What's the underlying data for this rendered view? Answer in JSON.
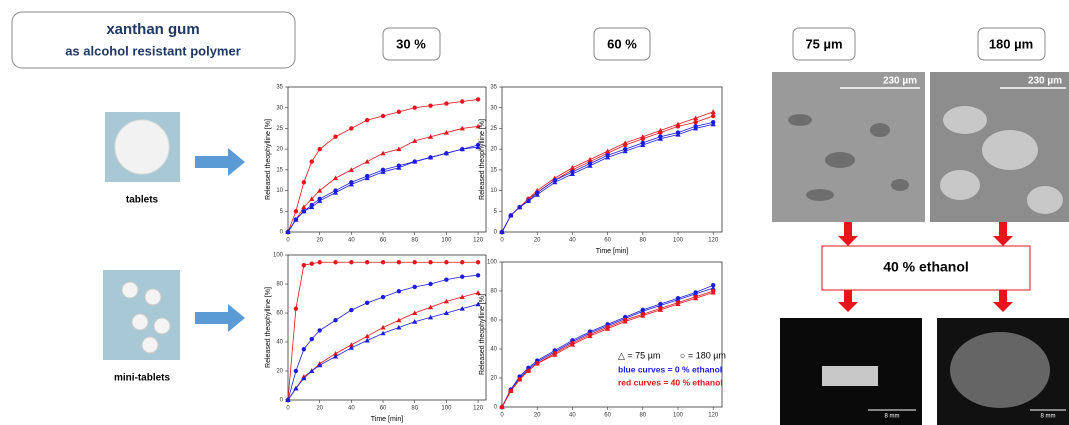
{
  "header": {
    "title": "xanthan gum",
    "subtitle": "as alcohol resistant polymer"
  },
  "columns": [
    "30 %",
    "60 %",
    "75 µm",
    "180 µm"
  ],
  "samples": [
    "tablets",
    "mini-tablets"
  ],
  "treatment": "40 % ethanol",
  "scale_bars": [
    "230 µm",
    "230 µm",
    "8 mm",
    "8 mm"
  ],
  "chart_data": [
    {
      "type": "line",
      "ylabel": "Released theophylline [%]",
      "x": [
        0,
        5,
        10,
        15,
        20,
        30,
        40,
        50,
        60,
        70,
        80,
        90,
        100,
        110,
        120
      ],
      "xlim": [
        0,
        125
      ],
      "xticks": [
        0,
        20,
        40,
        60,
        80,
        100,
        120
      ],
      "ylim": [
        0,
        35
      ],
      "yticks": [
        0,
        5,
        10,
        15,
        20,
        25,
        30,
        35
      ],
      "series": [
        {
          "color": "#e8141c",
          "marker": "circle",
          "values": [
            0,
            5,
            12,
            17,
            20,
            23,
            25,
            27,
            28,
            29,
            30,
            30.5,
            31,
            31.5,
            32
          ]
        },
        {
          "color": "#e8141c",
          "marker": "triangle",
          "values": [
            0,
            3,
            6,
            8,
            10,
            13,
            15,
            17,
            19,
            20,
            22,
            23,
            24,
            25,
            25.5
          ]
        },
        {
          "color": "#1c1ce0",
          "marker": "circle",
          "values": [
            0,
            3,
            5,
            6.5,
            8,
            10,
            12,
            13.5,
            15,
            16,
            17,
            18,
            19,
            20,
            21
          ]
        },
        {
          "color": "#1c1ce0",
          "marker": "triangle",
          "values": [
            0,
            3,
            5,
            6,
            7.5,
            9.5,
            11.5,
            13,
            14.5,
            15.5,
            17,
            18,
            19,
            20,
            20.5
          ]
        }
      ]
    },
    {
      "type": "line",
      "ylabel": "Released theophylline [%]",
      "xlabel": "Time [min]",
      "x": [
        0,
        5,
        10,
        15,
        20,
        30,
        40,
        50,
        60,
        70,
        80,
        90,
        100,
        110,
        120
      ],
      "xlim": [
        0,
        125
      ],
      "xticks": [
        0,
        20,
        40,
        60,
        80,
        100,
        120
      ],
      "ylim": [
        0,
        35
      ],
      "yticks": [
        0,
        5,
        10,
        15,
        20,
        25,
        30,
        35
      ],
      "series": [
        {
          "color": "#e8141c",
          "marker": "triangle",
          "values": [
            0,
            4,
            6,
            8,
            10,
            13,
            15.5,
            17.5,
            19.5,
            21.5,
            23,
            24.5,
            26,
            27.5,
            29
          ]
        },
        {
          "color": "#e8141c",
          "marker": "circle",
          "values": [
            0,
            4,
            6,
            8,
            9.5,
            12.5,
            15,
            17,
            19,
            21,
            22.5,
            24,
            25.5,
            26.5,
            28
          ]
        },
        {
          "color": "#1c1ce0",
          "marker": "circle",
          "values": [
            0,
            4,
            6,
            7.5,
            9.5,
            12.5,
            14.5,
            16.5,
            18.5,
            20,
            21.5,
            23,
            24,
            25.5,
            26.5
          ]
        },
        {
          "color": "#1c1ce0",
          "marker": "triangle",
          "values": [
            0,
            4,
            6,
            7.5,
            9,
            12,
            14,
            16,
            18,
            19.5,
            21,
            22.5,
            23.5,
            25,
            26
          ]
        }
      ]
    },
    {
      "type": "line",
      "ylabel": "Released theophylline [%]",
      "xlabel": "Time [min]",
      "x": [
        0,
        5,
        10,
        15,
        20,
        30,
        40,
        50,
        60,
        70,
        80,
        90,
        100,
        110,
        120
      ],
      "xlim": [
        0,
        125
      ],
      "xticks": [
        0,
        20,
        40,
        60,
        80,
        100,
        120
      ],
      "ylim": [
        0,
        100
      ],
      "yticks": [
        0,
        20,
        40,
        60,
        80,
        100
      ],
      "series": [
        {
          "color": "#e8141c",
          "marker": "circle",
          "values": [
            0,
            63,
            93,
            94,
            95,
            95,
            95,
            95,
            95,
            95,
            95,
            95,
            95,
            95,
            95
          ]
        },
        {
          "color": "#1c1ce0",
          "marker": "circle",
          "values": [
            0,
            20,
            35,
            42,
            48,
            55,
            62,
            67,
            71,
            75,
            78,
            80,
            83,
            85,
            86
          ]
        },
        {
          "color": "#e8141c",
          "marker": "triangle",
          "values": [
            0,
            8,
            16,
            20,
            25,
            32,
            38,
            44,
            50,
            55,
            60,
            64,
            68,
            71,
            74
          ]
        },
        {
          "color": "#1c1ce0",
          "marker": "triangle",
          "values": [
            0,
            8,
            15,
            20,
            24,
            30,
            36,
            41,
            46,
            50,
            54,
            57,
            60,
            63,
            66
          ]
        }
      ]
    },
    {
      "type": "line",
      "ylabel": "Released theophylline [%]",
      "x": [
        0,
        5,
        10,
        15,
        20,
        30,
        40,
        50,
        60,
        70,
        80,
        90,
        100,
        110,
        120
      ],
      "xlim": [
        0,
        125
      ],
      "xticks": [
        0,
        20,
        40,
        60,
        80,
        100,
        120
      ],
      "ylim": [
        0,
        100
      ],
      "yticks": [
        0,
        20,
        40,
        60,
        80,
        100
      ],
      "annotations": [
        "△ = 75 µm",
        "○ = 180 µm",
        "blue curves = 0 % ethanol",
        "red curves = 40 % ethanol"
      ],
      "series": [
        {
          "color": "#1c1ce0",
          "marker": "circle",
          "values": [
            0,
            12,
            21,
            27,
            32,
            39,
            46,
            52,
            57,
            62,
            67,
            71,
            75,
            79,
            84
          ]
        },
        {
          "color": "#1c1ce0",
          "marker": "triangle",
          "values": [
            0,
            12,
            20,
            26,
            31,
            38,
            45,
            51,
            56,
            61,
            66,
            70,
            74,
            78,
            82
          ]
        },
        {
          "color": "#e8141c",
          "marker": "circle",
          "values": [
            0,
            11,
            19,
            25,
            30,
            37,
            44,
            50,
            55,
            60,
            64,
            68,
            72,
            76,
            80
          ]
        },
        {
          "color": "#e8141c",
          "marker": "triangle",
          "values": [
            0,
            11,
            19,
            25,
            30,
            36,
            43,
            49,
            54,
            59,
            63,
            67,
            71,
            75,
            79
          ]
        }
      ]
    }
  ]
}
